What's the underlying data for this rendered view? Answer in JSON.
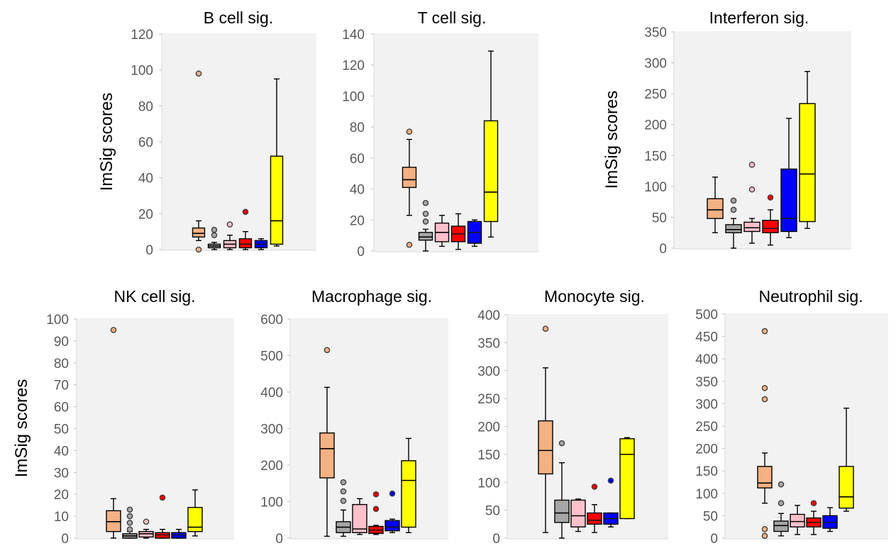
{
  "ylabel": "ImSig scores",
  "colors": {
    "groups": [
      "#f4b183",
      "#a6a6a6",
      "#ffc0cb",
      "#ff0000",
      "#0000ff",
      "#ffff00"
    ],
    "panel_bg": "#f2f2f2",
    "tick_text": "#595959"
  },
  "chart_data": [
    {
      "type": "box",
      "title": "B cell sig.",
      "ylabel": "ImSig scores",
      "ylim": [
        0,
        120
      ],
      "yticks": [
        0,
        20,
        40,
        60,
        80,
        100,
        120
      ],
      "boxes": [
        {
          "whislo": 5,
          "q1": 7,
          "med": 9,
          "q3": 12,
          "whishi": 16,
          "fliers": [
            0,
            98
          ]
        },
        {
          "whislo": 0,
          "q1": 1,
          "med": 2,
          "q3": 3,
          "whishi": 4,
          "fliers": [
            8,
            11
          ]
        },
        {
          "whislo": 0,
          "q1": 1,
          "med": 3,
          "q3": 5,
          "whishi": 8,
          "fliers": [
            14
          ]
        },
        {
          "whislo": 0,
          "q1": 1,
          "med": 3,
          "q3": 6,
          "whishi": 10,
          "fliers": [
            21
          ]
        },
        {
          "whislo": 0,
          "q1": 1,
          "med": 3,
          "q3": 5,
          "whishi": 6,
          "fliers": []
        },
        {
          "whislo": 2,
          "q1": 3,
          "med": 16,
          "q3": 52,
          "whishi": 95,
          "fliers": []
        }
      ]
    },
    {
      "type": "box",
      "title": "T cell sig.",
      "ylabel": "",
      "ylim": [
        0,
        140
      ],
      "yticks": [
        0,
        20,
        40,
        60,
        80,
        100,
        120,
        140
      ],
      "boxes": [
        {
          "whislo": 23,
          "q1": 41,
          "med": 46,
          "q3": 54,
          "whishi": 72,
          "fliers": [
            4,
            77
          ]
        },
        {
          "whislo": 0,
          "q1": 7,
          "med": 9,
          "q3": 12,
          "whishi": 14,
          "fliers": [
            19,
            24,
            31
          ]
        },
        {
          "whislo": 3,
          "q1": 6,
          "med": 12,
          "q3": 18,
          "whishi": 23,
          "fliers": []
        },
        {
          "whislo": 1,
          "q1": 6,
          "med": 11,
          "q3": 16,
          "whishi": 24,
          "fliers": []
        },
        {
          "whislo": 3,
          "q1": 5,
          "med": 12,
          "q3": 19,
          "whishi": 20,
          "fliers": []
        },
        {
          "whislo": 9,
          "q1": 19,
          "med": 38,
          "q3": 84,
          "whishi": 129,
          "fliers": []
        }
      ]
    },
    {
      "type": "box",
      "title": "Interferon sig.",
      "ylabel": "ImSig scores",
      "ylim": [
        0,
        350
      ],
      "yticks": [
        0,
        50,
        100,
        150,
        200,
        250,
        300,
        350
      ],
      "boxes": [
        {
          "whislo": 25,
          "q1": 48,
          "med": 62,
          "q3": 80,
          "whishi": 115,
          "fliers": []
        },
        {
          "whislo": 0,
          "q1": 25,
          "med": 30,
          "q3": 38,
          "whishi": 48,
          "fliers": [
            62,
            77
          ]
        },
        {
          "whislo": 8,
          "q1": 27,
          "med": 33,
          "q3": 42,
          "whishi": 48,
          "fliers": [
            95,
            135
          ]
        },
        {
          "whislo": 5,
          "q1": 25,
          "med": 32,
          "q3": 45,
          "whishi": 62,
          "fliers": [
            82
          ]
        },
        {
          "whislo": 17,
          "q1": 27,
          "med": 48,
          "q3": 128,
          "whishi": 210,
          "fliers": []
        },
        {
          "whislo": 32,
          "q1": 43,
          "med": 120,
          "q3": 234,
          "whishi": 286,
          "fliers": []
        }
      ]
    },
    {
      "type": "box",
      "title": "NK cell sig.",
      "ylabel": "ImSig scores",
      "ylim": [
        0,
        100
      ],
      "yticks": [
        0,
        10,
        20,
        30,
        40,
        50,
        60,
        70,
        80,
        90,
        100
      ],
      "boxes": [
        {
          "whislo": 0,
          "q1": 3,
          "med": 7.5,
          "q3": 12.5,
          "whishi": 18,
          "fliers": [
            95
          ]
        },
        {
          "whislo": 0,
          "q1": 0,
          "med": 1,
          "q3": 2,
          "whishi": 3,
          "fliers": [
            4,
            7,
            10,
            13
          ]
        },
        {
          "whislo": 0,
          "q1": 0.5,
          "med": 2,
          "q3": 3,
          "whishi": 4,
          "fliers": [
            7.5
          ]
        },
        {
          "whislo": 0,
          "q1": 0,
          "med": 1.5,
          "q3": 2.5,
          "whishi": 4,
          "fliers": [
            18.5
          ]
        },
        {
          "whislo": 0,
          "q1": 0,
          "med": 1.5,
          "q3": 2.5,
          "whishi": 4,
          "fliers": []
        },
        {
          "whislo": 1,
          "q1": 3,
          "med": 5,
          "q3": 14,
          "whishi": 22,
          "fliers": []
        }
      ]
    },
    {
      "type": "box",
      "title": "Macrophage sig.",
      "ylabel": "",
      "ylim": [
        0,
        600
      ],
      "yticks": [
        0,
        100,
        200,
        300,
        400,
        500,
        600
      ],
      "boxes": [
        {
          "whislo": 5,
          "q1": 165,
          "med": 245,
          "q3": 288,
          "whishi": 413,
          "fliers": [
            515
          ]
        },
        {
          "whislo": 5,
          "q1": 15,
          "med": 30,
          "q3": 45,
          "whishi": 77,
          "fliers": [
            102,
            128,
            153
          ]
        },
        {
          "whislo": 10,
          "q1": 15,
          "med": 25,
          "q3": 92,
          "whishi": 108,
          "fliers": []
        },
        {
          "whislo": 10,
          "q1": 13,
          "med": 22,
          "q3": 32,
          "whishi": 35,
          "fliers": [
            80,
            120
          ]
        },
        {
          "whislo": 15,
          "q1": 20,
          "med": 30,
          "q3": 48,
          "whishi": 52,
          "fliers": [
            122
          ]
        },
        {
          "whislo": 15,
          "q1": 30,
          "med": 158,
          "q3": 212,
          "whishi": 273,
          "fliers": []
        }
      ]
    },
    {
      "type": "box",
      "title": "Monocyte sig.",
      "ylabel": "",
      "ylim": [
        0,
        400
      ],
      "yticks": [
        0,
        50,
        100,
        150,
        200,
        250,
        300,
        350,
        400
      ],
      "boxes": [
        {
          "whislo": 10,
          "q1": 115,
          "med": 157,
          "q3": 210,
          "whishi": 305,
          "fliers": [
            375
          ]
        },
        {
          "whislo": 0,
          "q1": 28,
          "med": 45,
          "q3": 68,
          "whishi": 135,
          "fliers": [
            170
          ]
        },
        {
          "whislo": 12,
          "q1": 20,
          "med": 40,
          "q3": 68,
          "whishi": 70,
          "fliers": []
        },
        {
          "whislo": 10,
          "q1": 25,
          "med": 32,
          "q3": 45,
          "whishi": 60,
          "fliers": [
            92
          ]
        },
        {
          "whislo": 20,
          "q1": 25,
          "med": 35,
          "q3": 45,
          "whishi": 45,
          "fliers": [
            103
          ]
        },
        {
          "whislo": 35,
          "q1": 35,
          "med": 150,
          "q3": 178,
          "whishi": 180,
          "fliers": []
        }
      ]
    },
    {
      "type": "box",
      "title": "Neutrophil sig.",
      "ylabel": "",
      "ylim": [
        0,
        500
      ],
      "yticks": [
        0,
        50,
        100,
        150,
        200,
        250,
        300,
        350,
        400,
        450,
        500
      ],
      "boxes": [
        {
          "whislo": 78,
          "q1": 112,
          "med": 123,
          "q3": 160,
          "whishi": 190,
          "fliers": [
            5,
            20,
            310,
            335,
            462
          ]
        },
        {
          "whislo": 5,
          "q1": 15,
          "med": 28,
          "q3": 38,
          "whishi": 55,
          "fliers": [
            78,
            120
          ]
        },
        {
          "whislo": 8,
          "q1": 25,
          "med": 37,
          "q3": 53,
          "whishi": 73,
          "fliers": []
        },
        {
          "whislo": 8,
          "q1": 25,
          "med": 35,
          "q3": 45,
          "whishi": 60,
          "fliers": [
            78
          ]
        },
        {
          "whislo": 15,
          "q1": 22,
          "med": 35,
          "q3": 50,
          "whishi": 68,
          "fliers": []
        },
        {
          "whislo": 60,
          "q1": 67,
          "med": 92,
          "q3": 160,
          "whishi": 290,
          "fliers": []
        }
      ]
    }
  ]
}
